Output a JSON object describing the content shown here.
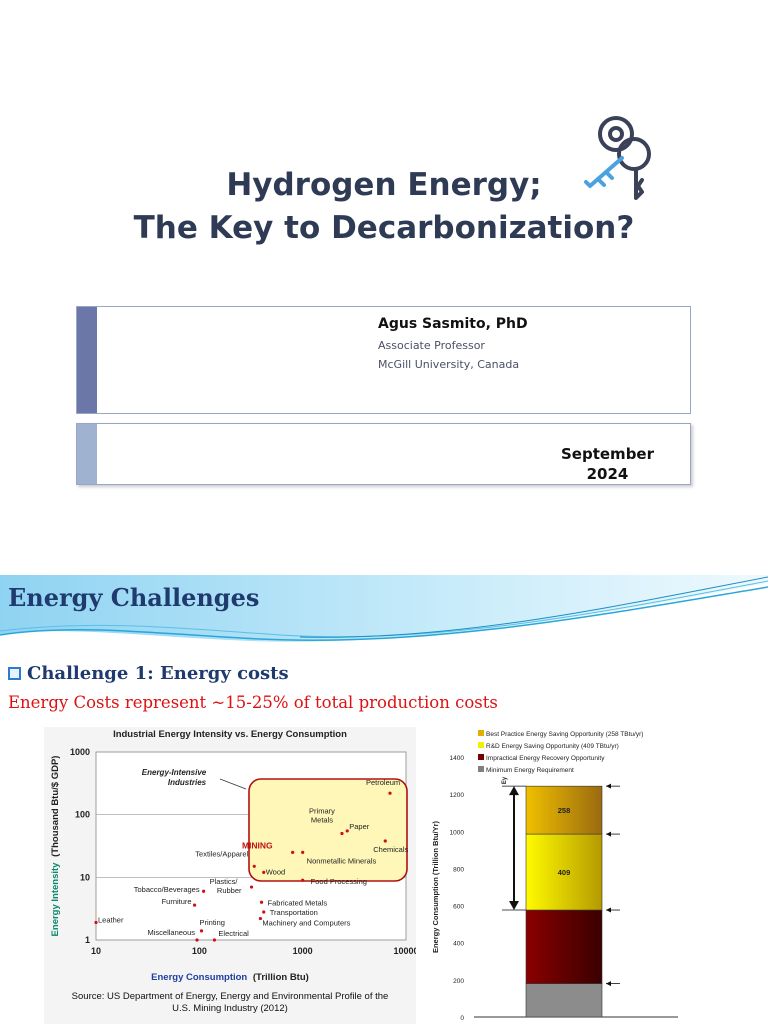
{
  "slide1": {
    "title_line1": "Hydrogen Energy;",
    "title_line2": "The Key to Decarbonization?",
    "icon": "key-icon",
    "author": "Agus Sasmito, PhD",
    "role": "Associate Professor",
    "institution": "McGill University, Canada",
    "date_month": "September",
    "date_year": "2024",
    "colors": {
      "title": "#2f3b55",
      "bar_dark": "#6b77a6",
      "bar_light": "#9fb3d0"
    }
  },
  "slide2": {
    "title": "Energy Challenges",
    "challenge": "Challenge 1: Energy costs",
    "subtitle": "Energy Costs represent ~15-25% of total production costs",
    "source_line1": "Source: US Department of Energy, Energy and Environmental Profile of the",
    "source_line2": "U.S. Mining Industry (2012)"
  },
  "chart_data": [
    {
      "type": "scatter",
      "title": "Industrial Energy Intensity vs. Energy Consumption",
      "xlabel_a": "Energy Consumption",
      "xlabel_b": "(Trillion Btu)",
      "ylabel_a": "Energy Intensity",
      "ylabel_b": "(Thousand Btu/$ GDP)",
      "x_scale": "log",
      "y_scale": "log",
      "xlim": [
        10,
        10000
      ],
      "ylim": [
        1,
        1000
      ],
      "x_ticks": [
        "10",
        "100",
        "1000",
        "10000"
      ],
      "y_ticks": [
        "1",
        "10",
        "100",
        "1000"
      ],
      "grid": true,
      "box_label_line1": "Energy-Intensive",
      "box_label_line2": "Industries",
      "points": [
        {
          "label": "Petroleum",
          "x": 7000,
          "y": 220
        },
        {
          "label": "Primary Metals",
          "x": 2400,
          "y": 50
        },
        {
          "label": "Paper",
          "x": 2700,
          "y": 55
        },
        {
          "label": "Chemicals",
          "x": 6300,
          "y": 38
        },
        {
          "label": "MINING",
          "x": 800,
          "y": 25
        },
        {
          "label": "Nonmetallic Minerals",
          "x": 1000,
          "y": 25
        },
        {
          "label": "Wood",
          "x": 420,
          "y": 12
        },
        {
          "label": "Textiles/Apparel",
          "x": 340,
          "y": 15
        },
        {
          "label": "Food Processing",
          "x": 1000,
          "y": 9
        },
        {
          "label": "Tobacco/Beverages",
          "x": 110,
          "y": 6
        },
        {
          "label": "Furniture",
          "x": 90,
          "y": 3.6
        },
        {
          "label": "Plastics/ Rubber",
          "x": 320,
          "y": 7
        },
        {
          "label": "Fabricated Metals",
          "x": 400,
          "y": 4
        },
        {
          "label": "Transportation",
          "x": 420,
          "y": 2.8
        },
        {
          "label": "Machinery and Computers",
          "x": 390,
          "y": 2.2
        },
        {
          "label": "Printing",
          "x": 105,
          "y": 1.4
        },
        {
          "label": "Electrical",
          "x": 140,
          "y": 1
        },
        {
          "label": "Miscellaneous",
          "x": 95,
          "y": 1
        },
        {
          "label": "Leather",
          "x": 10,
          "y": 1.9
        }
      ]
    },
    {
      "type": "bar",
      "ylabel": "Energy Consumption (Trillion Btu/Yr)",
      "ylim": [
        0,
        1400
      ],
      "y_ticks": [
        "0",
        "200",
        "400",
        "600",
        "800",
        "1000",
        "1200",
        "1400"
      ],
      "legend": [
        {
          "name": "Best Practice Energy Saving Opportunity (258 TBtu/yr)",
          "color": "#e0b000"
        },
        {
          "name": "R&D Energy Saving Opportunity (409 TBtu/yr)",
          "color": "#f2ef00"
        },
        {
          "name": "Impractical Energy Recovery Opportunity",
          "color": "#7a0000"
        },
        {
          "name": "Minimum Energy Requirement",
          "color": "#808080"
        }
      ],
      "segments": [
        {
          "name": "Minimum Energy Requirement",
          "from": 0,
          "to": 180,
          "label": ""
        },
        {
          "name": "Impractical Energy Recovery Opportunity",
          "from": 180,
          "to": 576,
          "label": ""
        },
        {
          "name": "R&D Energy Saving Opportunity",
          "from": 576,
          "to": 985,
          "label": "409"
        },
        {
          "name": "Best Practice Energy Saving Opportunity",
          "from": 985,
          "to": 1243,
          "label": "258"
        }
      ],
      "top_marker": "Ey"
    }
  ]
}
